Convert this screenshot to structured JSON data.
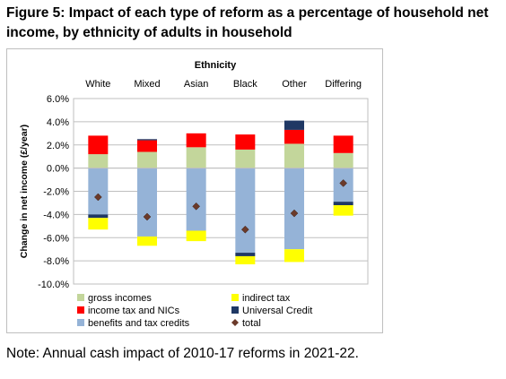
{
  "figure_title": "Figure 5: Impact of each type of reform as a percentage of household net income, by ethnicity of adults in household",
  "note": "Note: Annual cash impact of 2010-17 reforms in 2021-22.",
  "chart_data": {
    "type": "bar",
    "stacked": true,
    "title": "Ethnicity",
    "xlabel": "",
    "ylabel": "Change in net income (£/year)",
    "categories": [
      "White",
      "Mixed",
      "Asian",
      "Black",
      "Other",
      "Differing"
    ],
    "x_tick_position": "top",
    "ylim": [
      -10.0,
      6.0
    ],
    "yticks": [
      6.0,
      4.0,
      2.0,
      0.0,
      -2.0,
      -4.0,
      -6.0,
      -8.0,
      -10.0
    ],
    "ytick_labels": [
      "6.0%",
      "4.0%",
      "2.0%",
      "0.0%",
      "-2.0%",
      "-4.0%",
      "-6.0%",
      "-8.0%",
      "-10.0%"
    ],
    "grid": true,
    "legend_position": "bottom",
    "series": [
      {
        "name": "gross incomes",
        "color": "#c3d69b",
        "values": [
          1.2,
          1.4,
          1.8,
          1.6,
          2.1,
          1.3
        ]
      },
      {
        "name": "income tax and NICs",
        "color": "#ff0000",
        "values": [
          1.6,
          1.0,
          1.2,
          1.3,
          1.2,
          1.5
        ]
      },
      {
        "name": "benefits and tax credits",
        "color": "#95b3d7",
        "values": [
          -4.0,
          -5.9,
          -5.4,
          -7.3,
          -7.0,
          -2.9
        ]
      },
      {
        "name": "Universal Credit",
        "color": "#1f3864",
        "values": [
          -0.3,
          0.1,
          0.0,
          -0.3,
          0.8,
          -0.3
        ]
      },
      {
        "name": "indirect tax",
        "color": "#ffff00",
        "values": [
          -1.0,
          -0.8,
          -0.9,
          -0.7,
          -1.1,
          -0.9
        ]
      },
      {
        "name": "total",
        "color": "#6b3a2a",
        "marker": "diamond",
        "values": [
          -2.5,
          -4.2,
          -3.3,
          -5.3,
          -3.9,
          -1.3
        ]
      }
    ],
    "legend": [
      {
        "name": "gross incomes",
        "color": "#c3d69b",
        "marker": "square"
      },
      {
        "name": "indirect tax",
        "color": "#ffff00",
        "marker": "square"
      },
      {
        "name": "income tax and NICs",
        "color": "#ff0000",
        "marker": "square"
      },
      {
        "name": "Universal Credit",
        "color": "#1f3864",
        "marker": "square"
      },
      {
        "name": "benefits and tax credits",
        "color": "#95b3d7",
        "marker": "square"
      },
      {
        "name": "total",
        "color": "#6b3a2a",
        "marker": "diamond"
      }
    ]
  }
}
